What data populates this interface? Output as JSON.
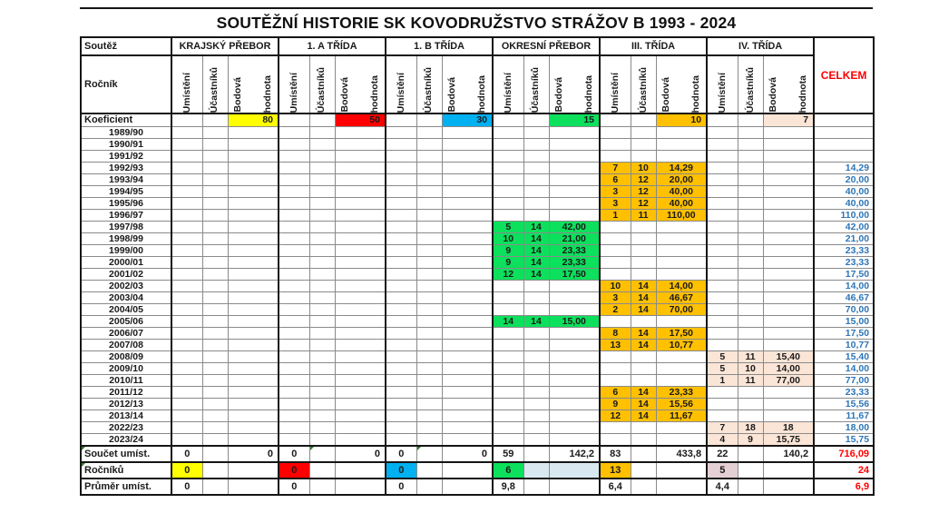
{
  "title": "SOUTĚŽNÍ HISTORIE SK KOVODRUŽSTVO STRÁŽOV B 1993 - 2024",
  "header": {
    "soutez_label": "Soutěž",
    "rocnik_label": "Ročník",
    "celkem_label": "CELKEM",
    "competitions": [
      "KRAJSKÝ PŘEBOR",
      "1. A TŘÍDA",
      "1. B TŘÍDA",
      "OKRESNÍ PŘEBOR",
      "III. TŘÍDA",
      "IV. TŘÍDA"
    ],
    "subcol_umisteni": "Umístění",
    "subcol_ucastniku": "Účastníků",
    "subcol_bodova": "Bodová",
    "subcol_hodnota": "hodnota"
  },
  "colors": {
    "group_fills": [
      "#ffff00",
      "#ff0000",
      "#00b0f0",
      "#0ce05c",
      "#ffc000",
      "#fbe5d6"
    ],
    "celkem_text": "#2e75b6",
    "total_text": "#ff0000",
    "rocniku_extra_fill": "#d9e8f0",
    "rocniku_iv_fill": "#e4cfd4"
  },
  "koeficient": {
    "label": "Koeficient",
    "values": [
      "80",
      "50",
      "30",
      "15",
      "10",
      "7"
    ]
  },
  "rows": [
    {
      "year": "1989/90"
    },
    {
      "year": "1990/91"
    },
    {
      "year": "1991/92"
    },
    {
      "year": "1992/93",
      "comp": 4,
      "umisteni": "7",
      "ucastniku": "10",
      "bodova": "14,29",
      "celkem": "14,29"
    },
    {
      "year": "1993/94",
      "comp": 4,
      "umisteni": "6",
      "ucastniku": "12",
      "bodova": "20,00",
      "celkem": "20,00"
    },
    {
      "year": "1994/95",
      "comp": 4,
      "umisteni": "3",
      "ucastniku": "12",
      "bodova": "40,00",
      "celkem": "40,00"
    },
    {
      "year": "1995/96",
      "comp": 4,
      "umisteni": "3",
      "ucastniku": "12",
      "bodova": "40,00",
      "celkem": "40,00"
    },
    {
      "year": "1996/97",
      "comp": 4,
      "umisteni": "1",
      "ucastniku": "11",
      "bodova": "110,00",
      "celkem": "110,00"
    },
    {
      "year": "1997/98",
      "comp": 3,
      "umisteni": "5",
      "ucastniku": "14",
      "bodova": "42,00",
      "celkem": "42,00"
    },
    {
      "year": "1998/99",
      "comp": 3,
      "umisteni": "10",
      "ucastniku": "14",
      "bodova": "21,00",
      "celkem": "21,00"
    },
    {
      "year": "1999/00",
      "comp": 3,
      "umisteni": "9",
      "ucastniku": "14",
      "bodova": "23,33",
      "celkem": "23,33"
    },
    {
      "year": "2000/01",
      "comp": 3,
      "umisteni": "9",
      "ucastniku": "14",
      "bodova": "23,33",
      "celkem": "23,33"
    },
    {
      "year": "2001/02",
      "comp": 3,
      "umisteni": "12",
      "ucastniku": "14",
      "bodova": "17,50",
      "celkem": "17,50"
    },
    {
      "year": "2002/03",
      "comp": 4,
      "umisteni": "10",
      "ucastniku": "14",
      "bodova": "14,00",
      "celkem": "14,00"
    },
    {
      "year": "2003/04",
      "comp": 4,
      "umisteni": "3",
      "ucastniku": "14",
      "bodova": "46,67",
      "celkem": "46,67"
    },
    {
      "year": "2004/05",
      "comp": 4,
      "umisteni": "2",
      "ucastniku": "14",
      "bodova": "70,00",
      "celkem": "70,00"
    },
    {
      "year": "2005/06",
      "comp": 3,
      "umisteni": "14",
      "ucastniku": "14",
      "bodova": "15,00",
      "celkem": "15,00"
    },
    {
      "year": "2006/07",
      "comp": 4,
      "umisteni": "8",
      "ucastniku": "14",
      "bodova": "17,50",
      "celkem": "17,50"
    },
    {
      "year": "2007/08",
      "comp": 4,
      "umisteni": "13",
      "ucastniku": "14",
      "bodova": "10,77",
      "celkem": "10,77"
    },
    {
      "year": "2008/09",
      "comp": 5,
      "umisteni": "5",
      "ucastniku": "11",
      "bodova": "15,40",
      "celkem": "15,40"
    },
    {
      "year": "2009/10",
      "comp": 5,
      "umisteni": "5",
      "ucastniku": "10",
      "bodova": "14,00",
      "celkem": "14,00"
    },
    {
      "year": "2010/11",
      "comp": 5,
      "umisteni": "1",
      "ucastniku": "11",
      "bodova": "77,00",
      "celkem": "77,00"
    },
    {
      "year": "2011/12",
      "comp": 4,
      "umisteni": "6",
      "ucastniku": "14",
      "bodova": "23,33",
      "celkem": "23,33"
    },
    {
      "year": "2012/13",
      "comp": 4,
      "umisteni": "9",
      "ucastniku": "14",
      "bodova": "15,56",
      "celkem": "15,56"
    },
    {
      "year": "2013/14",
      "comp": 4,
      "umisteni": "12",
      "ucastniku": "14",
      "bodova": "11,67",
      "celkem": "11,67"
    },
    {
      "year": "2022/23",
      "comp": 5,
      "umisteni": "7",
      "ucastniku": "18",
      "bodova": "18",
      "celkem": "18,00"
    },
    {
      "year": "2023/24",
      "comp": 5,
      "umisteni": "4",
      "ucastniku": "9",
      "bodova": "15,75",
      "celkem": "15,75"
    }
  ],
  "footer": {
    "soucet": {
      "label": "Součet umíst.",
      "groups": [
        [
          "0",
          "",
          "0"
        ],
        [
          "0",
          "",
          "0"
        ],
        [
          "0",
          "",
          "0"
        ],
        [
          "59",
          "",
          "142,2"
        ],
        [
          "83",
          "",
          "433,8"
        ],
        [
          "22",
          "",
          "140,2"
        ]
      ],
      "celkem": "716,09"
    },
    "rocniku": {
      "label": "Ročníků",
      "groups": [
        [
          "0",
          "",
          ""
        ],
        [
          "0",
          "",
          ""
        ],
        [
          "0",
          "",
          ""
        ],
        [
          "6",
          "",
          ""
        ],
        [
          "13",
          "",
          ""
        ],
        [
          "5",
          "",
          ""
        ]
      ],
      "celkem": "24"
    },
    "prumer": {
      "label": "Průměr umíst.",
      "groups": [
        [
          "0",
          "",
          ""
        ],
        [
          "0",
          "",
          ""
        ],
        [
          "0",
          "",
          ""
        ],
        [
          "9,8",
          "",
          ""
        ],
        [
          "6,4",
          "",
          ""
        ],
        [
          "4,4",
          "",
          ""
        ]
      ],
      "celkem": "6,9"
    }
  }
}
